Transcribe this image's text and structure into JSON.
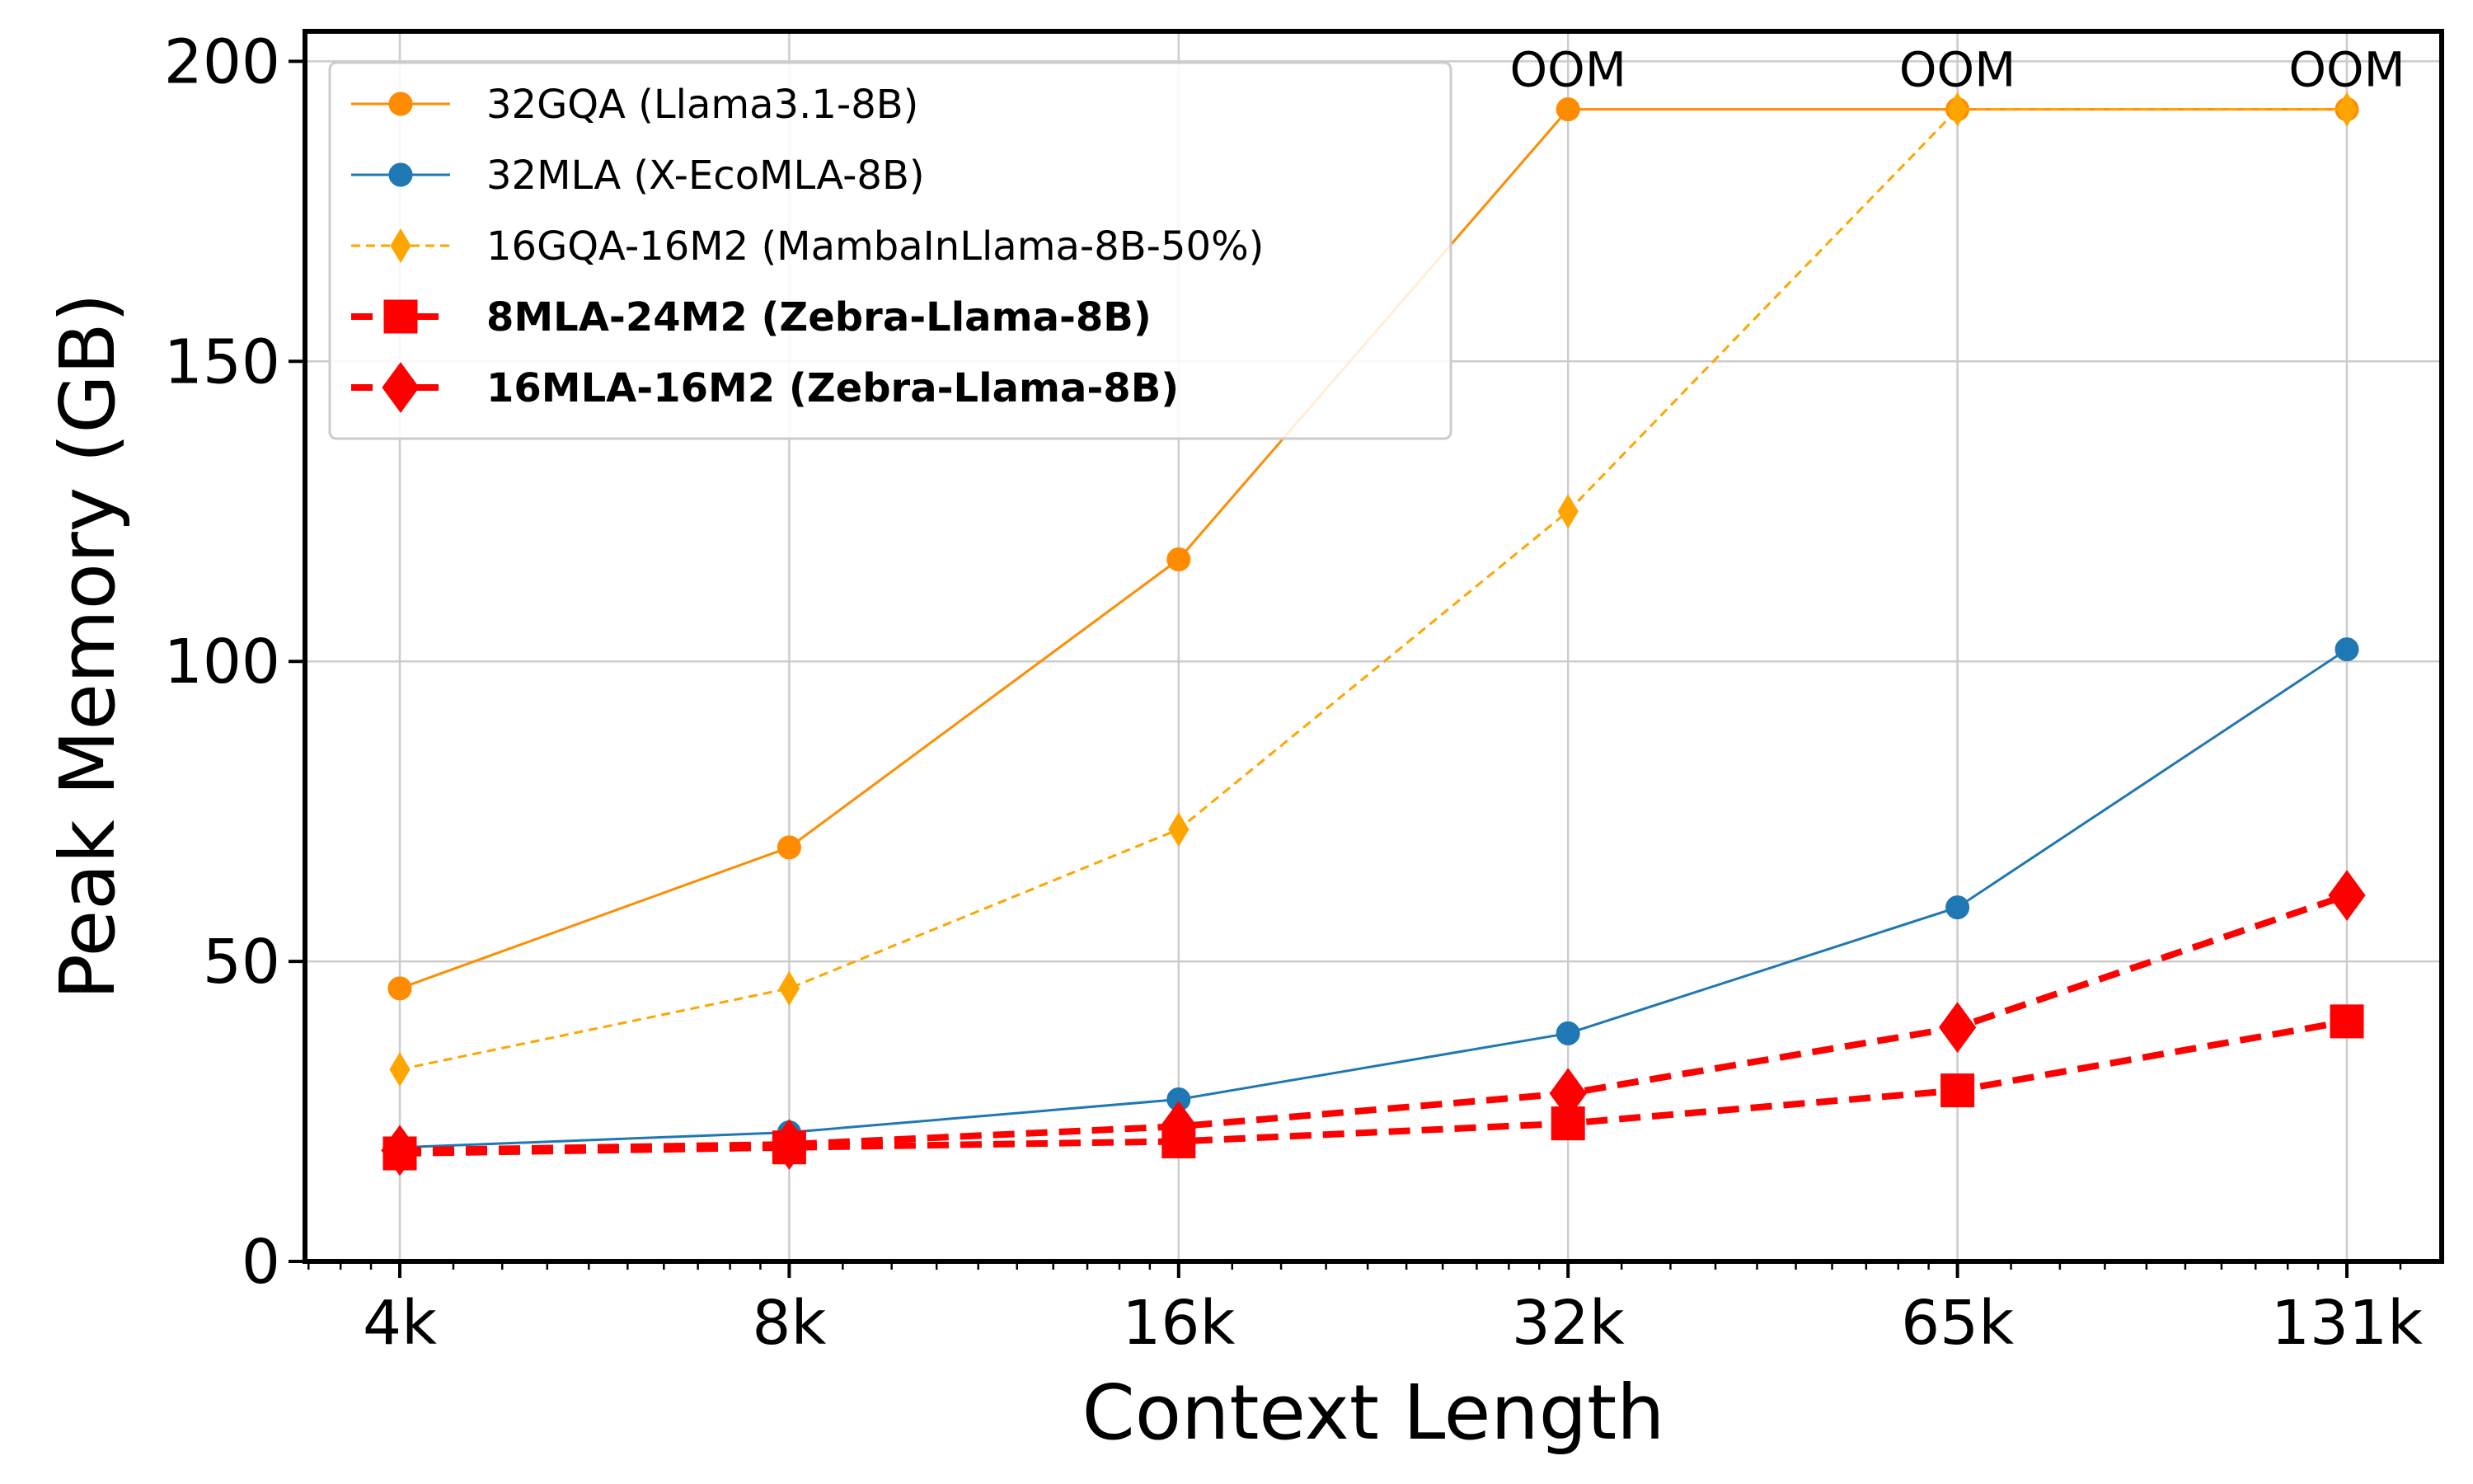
{
  "chart_data": {
    "type": "line",
    "xlabel": "Context Length",
    "ylabel": "Peak Memory (GB)",
    "x_scale": "log2",
    "categories": [
      "4k",
      "8k",
      "16k",
      "32k",
      "65k",
      "131k"
    ],
    "ylim": [
      0,
      205
    ],
    "yticks": [
      0,
      50,
      100,
      150,
      200
    ],
    "grid": true,
    "legend_position": "top-left",
    "oom_value": 192,
    "series": [
      {
        "name": "32GQA (Llama3.1-8B)",
        "color": "#ff8c00",
        "marker": "circle",
        "linestyle": "solid",
        "bold": false,
        "values": [
          45.5,
          69,
          117,
          192,
          192,
          192
        ],
        "annotations": [
          "",
          "",
          "",
          "OOM",
          "OOM",
          "OOM"
        ]
      },
      {
        "name": "32MLA (X-EcoMLA-8B)",
        "color": "#1f77b4",
        "marker": "circle",
        "linestyle": "solid",
        "bold": false,
        "values": [
          19,
          21.5,
          27,
          38,
          59,
          102
        ],
        "annotations": [
          "",
          "",
          "",
          "",
          "",
          ""
        ]
      },
      {
        "name": "16GQA-16M2 (MambaInLlama-8B-50%)",
        "color": "#ffa500",
        "marker": "thin-diamond",
        "linestyle": "dashed",
        "bold": false,
        "values": [
          32,
          45.5,
          72,
          125,
          192,
          192
        ],
        "annotations": [
          "",
          "",
          "",
          "",
          "",
          ""
        ]
      },
      {
        "name": "8MLA-24M2 (Zebra-Llama-8B)",
        "color": "#ff0000",
        "marker": "square",
        "linestyle": "dashed",
        "bold": true,
        "values": [
          18,
          19,
          20,
          23,
          28.5,
          40
        ],
        "annotations": [
          "",
          "",
          "",
          "",
          "",
          ""
        ]
      },
      {
        "name": "16MLA-16M2 (Zebra-Llama-8B)",
        "color": "#ff0000",
        "marker": "diamond",
        "linestyle": "dashed",
        "bold": true,
        "values": [
          18.5,
          19.5,
          22.5,
          28,
          39,
          61
        ],
        "annotations": [
          "",
          "",
          "",
          "",
          "",
          ""
        ]
      }
    ]
  }
}
